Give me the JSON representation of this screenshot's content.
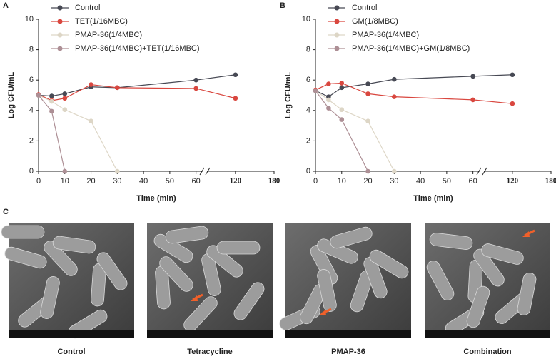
{
  "chart_data": [
    {
      "type": "line",
      "panel": "A",
      "x_label": "Time (min)",
      "y_label": "Log CFU/mL",
      "x": [
        0,
        5,
        10,
        20,
        30,
        60,
        120
      ],
      "xlim": [
        0,
        180
      ],
      "xticks": [
        0,
        10,
        20,
        30,
        40,
        50,
        60,
        120,
        180
      ],
      "ylim": [
        0,
        10
      ],
      "yticks": [
        0,
        2,
        4,
        6,
        8,
        10
      ],
      "series": [
        {
          "name": "Control",
          "color": "#474954",
          "values": [
            5.0,
            4.95,
            5.1,
            5.55,
            5.5,
            6.0,
            6.35
          ]
        },
        {
          "name": "TET(1/16MBC)",
          "color": "#d9473f",
          "values": [
            5.05,
            4.65,
            4.8,
            5.7,
            5.5,
            5.45,
            4.8
          ]
        },
        {
          "name": "PMAP-36(1/4MBC)",
          "color": "#ddd6c6",
          "values": [
            5.0,
            4.6,
            4.05,
            3.3,
            0,
            null,
            null
          ]
        },
        {
          "name": "PMAP-36(1/4MBC)+TET(1/16MBC)",
          "color": "#ad8f95",
          "values": [
            5.0,
            3.95,
            0,
            null,
            null,
            null,
            null
          ]
        }
      ]
    },
    {
      "type": "line",
      "panel": "B",
      "x_label": "Time (min)",
      "y_label": "Log CFU/mL",
      "x": [
        0,
        5,
        10,
        20,
        30,
        60,
        120
      ],
      "xlim": [
        0,
        180
      ],
      "xticks": [
        0,
        10,
        20,
        30,
        40,
        50,
        60,
        120,
        180
      ],
      "ylim": [
        0,
        10
      ],
      "yticks": [
        0,
        2,
        4,
        6,
        8,
        10
      ],
      "series": [
        {
          "name": "Control",
          "color": "#474954",
          "values": [
            5.3,
            4.9,
            5.5,
            5.75,
            6.05,
            6.25,
            6.35
          ]
        },
        {
          "name": "GM(1/8MBC)",
          "color": "#d9473f",
          "values": [
            5.35,
            5.75,
            5.8,
            5.1,
            4.9,
            4.7,
            4.45
          ]
        },
        {
          "name": "PMAP-36(1/4MBC)",
          "color": "#ddd6c6",
          "values": [
            5.3,
            4.7,
            4.05,
            3.3,
            0,
            null,
            null
          ]
        },
        {
          "name": "PMAP-36(1/4MBC)+GM(1/8MBC)",
          "color": "#ad8f95",
          "values": [
            5.3,
            4.15,
            3.4,
            0,
            null,
            null,
            null
          ]
        }
      ]
    }
  ],
  "images": {
    "panel": "C",
    "captions": [
      "Control",
      "Tetracycline",
      "PMAP-36",
      "Combination"
    ]
  }
}
